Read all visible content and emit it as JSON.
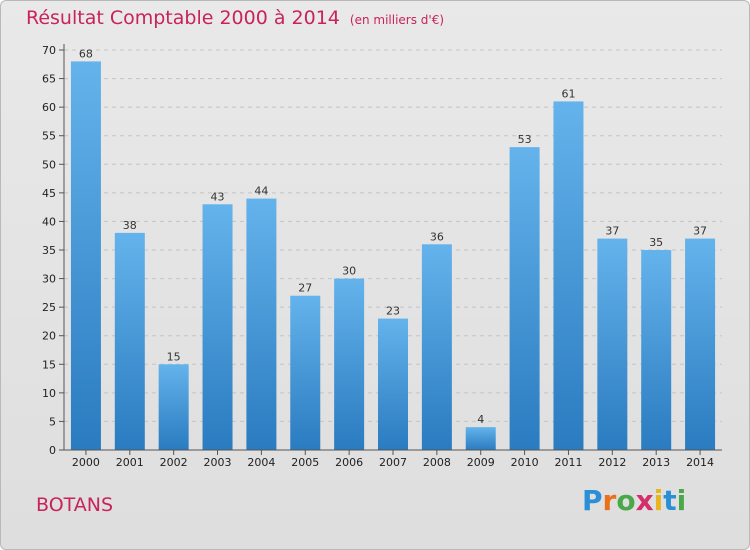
{
  "header": {
    "title": "Résultat Comptable 2000 à 2014",
    "unit": "(en milliers d'€)"
  },
  "footer": {
    "commune": "BOTANS",
    "brand_letters": [
      "P",
      "r",
      "o",
      "x",
      "i",
      "t",
      "i"
    ]
  },
  "colors": {
    "title": "#c8235a",
    "bar_light": "#64b3ec",
    "bar_dark": "#2a7bc0",
    "brand": [
      "#2b8fd6",
      "#e8711c",
      "#4aa84a",
      "#d42f6b",
      "#e9b41f",
      "#2b8fd6",
      "#4aa84a"
    ]
  },
  "chart_data": {
    "type": "bar",
    "title": "Résultat Comptable 2000 à 2014",
    "ylabel": "en milliers d'€",
    "xlabel": "",
    "categories": [
      "2000",
      "2001",
      "2002",
      "2003",
      "2004",
      "2005",
      "2006",
      "2007",
      "2008",
      "2009",
      "2010",
      "2011",
      "2012",
      "2013",
      "2014"
    ],
    "values": [
      68,
      38,
      15,
      43,
      44,
      27,
      30,
      23,
      36,
      4,
      53,
      61,
      37,
      35,
      37
    ],
    "ylim": [
      0,
      70
    ],
    "yticks": [
      0,
      5,
      10,
      15,
      20,
      25,
      30,
      35,
      40,
      45,
      50,
      55,
      60,
      65,
      70
    ],
    "grid": true
  }
}
